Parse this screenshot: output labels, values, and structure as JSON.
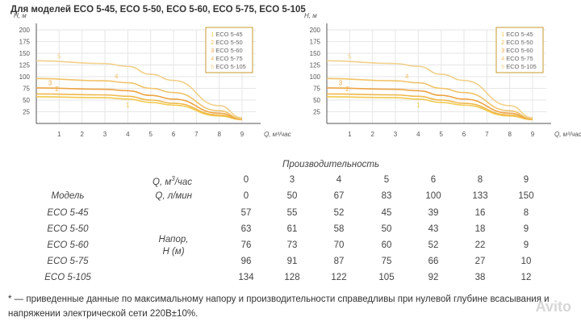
{
  "title": "Для моделей ECO 5-45, ECO 5-50, ECO 5-60, ECO 5-75, ECO 5-105",
  "colors": {
    "grid": "#e6e6e6",
    "axis": "#555555",
    "series": [
      "#f2c94c",
      "#f0b84a",
      "#eea444",
      "#f0c368",
      "#f1d08a"
    ],
    "legend_border": "#c99a2e"
  },
  "chart_data": [
    {
      "type": "line",
      "ylabel": "H, м",
      "xlabel": "Q, м³/час",
      "xlim": [
        0,
        9.6
      ],
      "ylim": [
        0,
        200
      ],
      "xticks": [
        "1",
        "2",
        "3",
        "4",
        "5",
        "6",
        "7",
        "8",
        "9"
      ],
      "yticks": [
        "25",
        "50",
        "75",
        "100",
        "125",
        "150",
        "175",
        "200"
      ],
      "grid": true,
      "legend_position": "top-right",
      "series": [
        {
          "name": "ECO 5-45",
          "marker": "1",
          "x": [
            0,
            3,
            4,
            5,
            6,
            8,
            9
          ],
          "values": [
            57,
            55,
            52,
            45,
            39,
            16,
            8
          ]
        },
        {
          "name": "ECO 5-50",
          "marker": "2",
          "x": [
            0,
            3,
            4,
            5,
            6,
            8,
            9
          ],
          "values": [
            63,
            61,
            58,
            50,
            43,
            18,
            9
          ]
        },
        {
          "name": "ECO 5-60",
          "marker": "3",
          "x": [
            0,
            3,
            4,
            5,
            6,
            8,
            9
          ],
          "values": [
            76,
            73,
            70,
            60,
            52,
            22,
            9
          ]
        },
        {
          "name": "ECO 5-75",
          "marker": "4",
          "x": [
            0,
            3,
            4,
            5,
            6,
            8,
            9
          ],
          "values": [
            96,
            91,
            87,
            75,
            66,
            27,
            10
          ]
        },
        {
          "name": "ECO 5-105",
          "marker": "5",
          "x": [
            0,
            3,
            4,
            5,
            6,
            8,
            9
          ],
          "values": [
            134,
            128,
            122,
            105,
            92,
            38,
            12
          ]
        }
      ]
    },
    {
      "type": "line",
      "ylabel": "H, м",
      "xlabel": "Q, м³/час",
      "xlim": [
        0,
        9.6
      ],
      "ylim": [
        0,
        200
      ],
      "xticks": [
        "1",
        "2",
        "3",
        "4",
        "5",
        "6",
        "7",
        "8",
        "9"
      ],
      "yticks": [
        "25",
        "50",
        "75",
        "100",
        "125",
        "150",
        "175",
        "200"
      ],
      "grid": true,
      "legend_position": "top-right",
      "series": [
        {
          "name": "ECO 5-45",
          "marker": "1",
          "x": [
            0,
            3,
            4,
            5,
            6,
            8,
            9
          ],
          "values": [
            57,
            55,
            52,
            45,
            39,
            16,
            8
          ]
        },
        {
          "name": "ECO 5-50",
          "marker": "2",
          "x": [
            0,
            3,
            4,
            5,
            6,
            8,
            9
          ],
          "values": [
            63,
            61,
            58,
            50,
            43,
            18,
            9
          ]
        },
        {
          "name": "ECO 5-60",
          "marker": "3",
          "x": [
            0,
            3,
            4,
            5,
            6,
            8,
            9
          ],
          "values": [
            76,
            73,
            70,
            60,
            52,
            22,
            9
          ]
        },
        {
          "name": "ECO 5-75",
          "marker": "4",
          "x": [
            0,
            3,
            4,
            5,
            6,
            8,
            9
          ],
          "values": [
            96,
            91,
            87,
            75,
            66,
            27,
            10
          ]
        },
        {
          "name": "ECO 5-105",
          "marker": "5",
          "x": [
            0,
            3,
            4,
            5,
            6,
            8,
            9
          ],
          "values": [
            134,
            128,
            122,
            105,
            92,
            38,
            12
          ]
        }
      ]
    }
  ],
  "table": {
    "title": "Производительность",
    "q_m3_label": "Q, м³/час",
    "q_m3": [
      "0",
      "3",
      "4",
      "5",
      "6",
      "8",
      "9"
    ],
    "model_label": "Модель",
    "q_lmin_label": "Q, л/мин",
    "q_lmin": [
      "0",
      "50",
      "67",
      "83",
      "100",
      "133",
      "150"
    ],
    "head_label_1": "Напор,",
    "head_label_2": "Н (м)",
    "rows": [
      {
        "model": "ECO 5-45",
        "values": [
          "57",
          "55",
          "52",
          "45",
          "39",
          "16",
          "8"
        ]
      },
      {
        "model": "ECO 5-50",
        "values": [
          "63",
          "61",
          "58",
          "50",
          "43",
          "18",
          "9"
        ]
      },
      {
        "model": "ECO 5-60",
        "values": [
          "76",
          "73",
          "70",
          "60",
          "52",
          "22",
          "9"
        ]
      },
      {
        "model": "ECO 5-75",
        "values": [
          "96",
          "91",
          "87",
          "75",
          "66",
          "27",
          "10"
        ]
      },
      {
        "model": "ECO 5-105",
        "values": [
          "134",
          "128",
          "122",
          "105",
          "92",
          "38",
          "12"
        ]
      }
    ]
  },
  "footnote": "* — приведенные данные по максимальному напору и производительности справедливы при нулевой глубине всасывания и напряжении электрической сети 220В±10%.",
  "watermark": "Avito"
}
